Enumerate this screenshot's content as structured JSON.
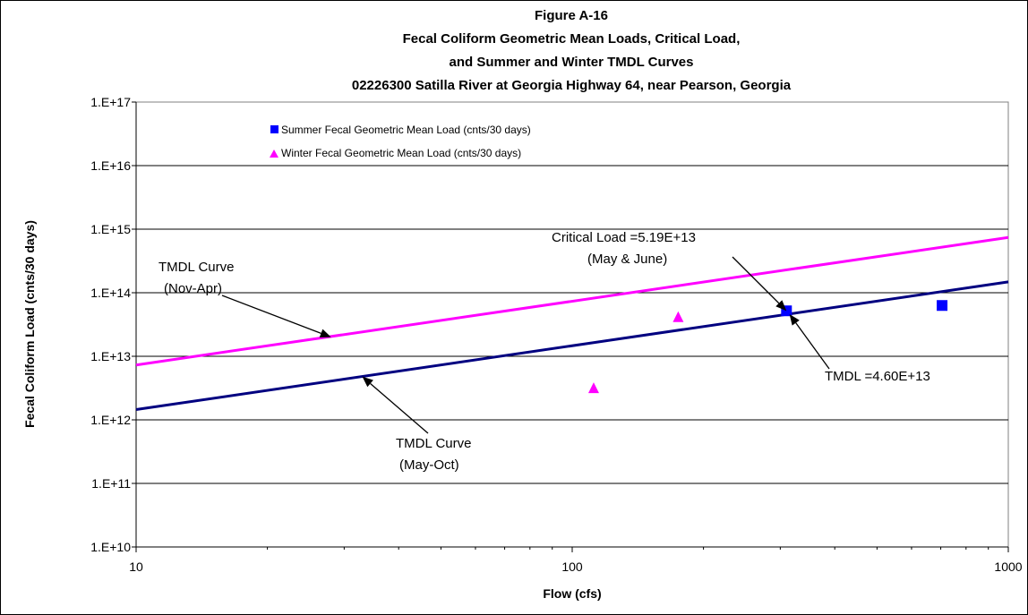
{
  "chart_data": {
    "type": "scatter",
    "title_lines": [
      "Figure A-16",
      "Fecal Coliform Geometric Mean Loads,  Critical Load,",
      "and Summer and Winter TMDL Curves",
      "02226300 Satilla River at Georgia Highway 64, near Pearson, Georgia"
    ],
    "xlabel": "Flow   (cfs)",
    "ylabel": "Fecal Coliform Load  (cnts/30 days)",
    "x_scale": "log",
    "y_scale": "log",
    "xlim": [
      10,
      1000
    ],
    "ylim": [
      10000000000.0,
      1e+17
    ],
    "x_ticks": [
      {
        "value": 10,
        "label": "10"
      },
      {
        "value": 100,
        "label": "100"
      },
      {
        "value": 1000,
        "label": "1000"
      }
    ],
    "y_ticks": [
      {
        "value": 10000000000.0,
        "label": "1.E+10"
      },
      {
        "value": 100000000000.0,
        "label": "1.E+11"
      },
      {
        "value": 1000000000000.0,
        "label": "1.E+12"
      },
      {
        "value": 10000000000000.0,
        "label": "1.E+13"
      },
      {
        "value": 100000000000000.0,
        "label": "1.E+14"
      },
      {
        "value": 1000000000000000.0,
        "label": "1.E+15"
      },
      {
        "value": 1e+16,
        "label": "1.E+16"
      },
      {
        "value": 1e+17,
        "label": "1.E+17"
      }
    ],
    "grid": "horizontal",
    "legend_position": "top-left",
    "series": [
      {
        "name": "Summer Fecal Geometric Mean Load (cnts/30 days)",
        "marker": "square",
        "color": "#0000ff",
        "points": [
          {
            "x": 310,
            "y": 51900000000000.0
          },
          {
            "x": 705,
            "y": 63000000000000.0
          }
        ]
      },
      {
        "name": "Winter Fecal Geometric Mean Load (cnts/30 days)",
        "marker": "triangle",
        "color": "#ff00ff",
        "points": [
          {
            "x": 112,
            "y": 3200000000000.0
          },
          {
            "x": 175,
            "y": 42000000000000.0
          }
        ]
      }
    ],
    "lines": [
      {
        "id": "winter-tmdl",
        "color": "#ff00ff",
        "points": [
          {
            "x": 10,
            "y": 7300000000000.0
          },
          {
            "x": 1000,
            "y": 740000000000000.0
          }
        ]
      },
      {
        "id": "summer-tmdl",
        "color": "#000080",
        "points": [
          {
            "x": 10,
            "y": 1450000000000.0
          },
          {
            "x": 1000,
            "y": 148000000000000.0
          }
        ]
      }
    ],
    "annotations": [
      {
        "id": "tmdl-nov-apr",
        "lines": [
          "TMDL Curve",
          "(Nov-Apr)"
        ],
        "target": {
          "x": 28,
          "y": 20000000000000.0
        }
      },
      {
        "id": "tmdl-may-oct",
        "lines": [
          "TMDL Curve",
          "(May-Oct)"
        ],
        "target": {
          "x": 33,
          "y": 4800000000000.0
        }
      },
      {
        "id": "critical-load",
        "lines": [
          "Critical Load =5.19E+13",
          "(May & June)"
        ],
        "target": {
          "x": 310,
          "y": 51900000000000.0
        }
      },
      {
        "id": "tmdl-value",
        "lines": [
          "TMDL =4.60E+13"
        ],
        "target": {
          "x": 315,
          "y": 46000000000000.0
        }
      }
    ],
    "colors": {
      "summer": "#0000ff",
      "winter": "#ff00ff",
      "summer_line": "#000080",
      "winter_line": "#ff00ff"
    }
  }
}
